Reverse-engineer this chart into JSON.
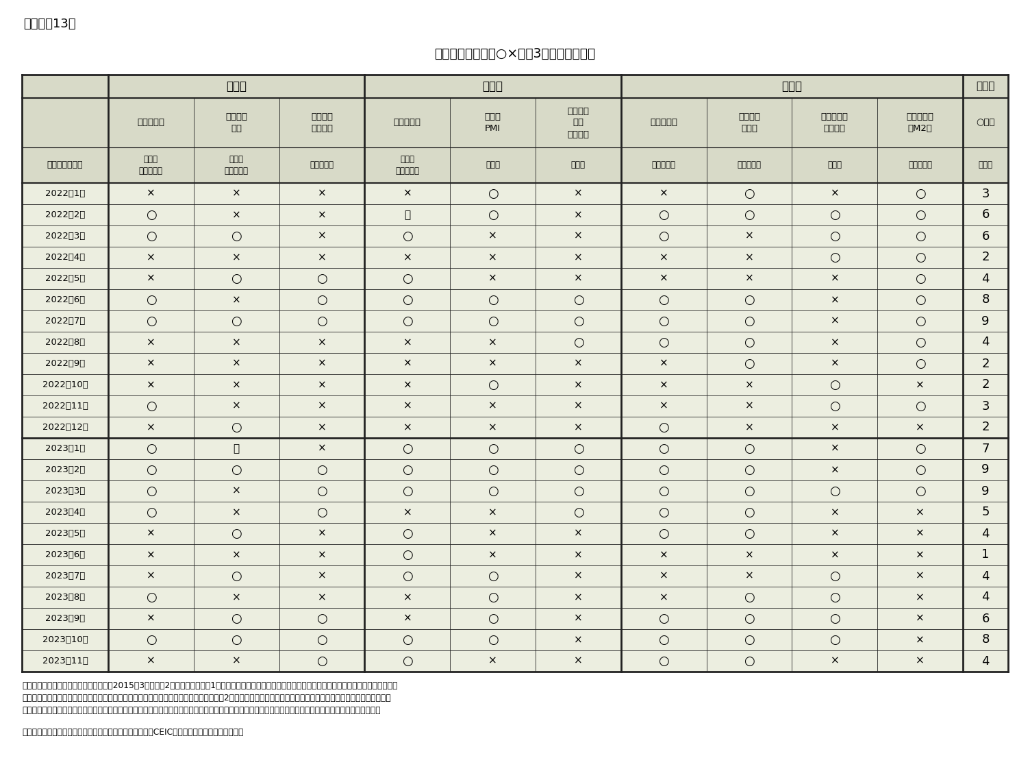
{
  "title": "景気評価総括表（○×表、3ヵ月前と対比）",
  "fig_label": "（図表－13）",
  "bg_color": "#eceee0",
  "header_bg": "#d8dac8",
  "border_color": "#222222",
  "rows": [
    {
      "label": "2022年1月",
      "vals": [
        "×",
        "×",
        "×",
        "×",
        "○",
        "×",
        "×",
        "○",
        "×",
        "○"
      ],
      "score": "3"
    },
    {
      "label": "2022年2月",
      "vals": [
        "○",
        "×",
        "×",
        "－",
        "○",
        "×",
        "○",
        "○",
        "○",
        "○"
      ],
      "score": "6"
    },
    {
      "label": "2022年3月",
      "vals": [
        "○",
        "○",
        "×",
        "○",
        "×",
        "×",
        "○",
        "×",
        "○",
        "○"
      ],
      "score": "6"
    },
    {
      "label": "2022年4月",
      "vals": [
        "×",
        "×",
        "×",
        "×",
        "×",
        "×",
        "×",
        "×",
        "○",
        "○"
      ],
      "score": "2"
    },
    {
      "label": "2022年5月",
      "vals": [
        "×",
        "○",
        "○",
        "○",
        "×",
        "×",
        "×",
        "×",
        "×",
        "○"
      ],
      "score": "4"
    },
    {
      "label": "2022年6月",
      "vals": [
        "○",
        "×",
        "○",
        "○",
        "○",
        "○",
        "○",
        "○",
        "×",
        "○"
      ],
      "score": "8"
    },
    {
      "label": "2022年7月",
      "vals": [
        "○",
        "○",
        "○",
        "○",
        "○",
        "○",
        "○",
        "○",
        "×",
        "○"
      ],
      "score": "9"
    },
    {
      "label": "2022年8月",
      "vals": [
        "×",
        "×",
        "×",
        "×",
        "×",
        "○",
        "○",
        "○",
        "×",
        "○"
      ],
      "score": "4"
    },
    {
      "label": "2022年9月",
      "vals": [
        "×",
        "×",
        "×",
        "×",
        "×",
        "×",
        "×",
        "○",
        "×",
        "○"
      ],
      "score": "2"
    },
    {
      "label": "2022年10月",
      "vals": [
        "×",
        "×",
        "×",
        "×",
        "○",
        "×",
        "×",
        "×",
        "○",
        "×"
      ],
      "score": "2"
    },
    {
      "label": "2022年11月",
      "vals": [
        "○",
        "×",
        "×",
        "×",
        "×",
        "×",
        "×",
        "×",
        "○",
        "○"
      ],
      "score": "3"
    },
    {
      "label": "2022年12月",
      "vals": [
        "×",
        "○",
        "×",
        "×",
        "×",
        "×",
        "○",
        "×",
        "×",
        "×"
      ],
      "score": "2"
    },
    {
      "label": "2023年1月",
      "vals": [
        "○",
        "－",
        "×",
        "○",
        "○",
        "○",
        "○",
        "○",
        "×",
        "○"
      ],
      "score": "7"
    },
    {
      "label": "2023年2月",
      "vals": [
        "○",
        "○",
        "○",
        "○",
        "○",
        "○",
        "○",
        "○",
        "×",
        "○"
      ],
      "score": "9"
    },
    {
      "label": "2023年3月",
      "vals": [
        "○",
        "×",
        "○",
        "○",
        "○",
        "○",
        "○",
        "○",
        "○",
        "○"
      ],
      "score": "9"
    },
    {
      "label": "2023年4月",
      "vals": [
        "○",
        "×",
        "○",
        "×",
        "×",
        "○",
        "○",
        "○",
        "×",
        "×"
      ],
      "score": "5"
    },
    {
      "label": "2023年5月",
      "vals": [
        "×",
        "○",
        "×",
        "○",
        "×",
        "×",
        "○",
        "○",
        "×",
        "×"
      ],
      "score": "4"
    },
    {
      "label": "2023年6月",
      "vals": [
        "×",
        "×",
        "×",
        "○",
        "×",
        "×",
        "×",
        "×",
        "×",
        "×"
      ],
      "score": "1"
    },
    {
      "label": "2023年7月",
      "vals": [
        "×",
        "○",
        "×",
        "○",
        "○",
        "×",
        "×",
        "×",
        "○",
        "×"
      ],
      "score": "4"
    },
    {
      "label": "2023年8月",
      "vals": [
        "○",
        "×",
        "×",
        "×",
        "○",
        "×",
        "×",
        "○",
        "○",
        "×"
      ],
      "score": "4"
    },
    {
      "label": "2023年9月",
      "vals": [
        "×",
        "○",
        "○",
        "×",
        "○",
        "×",
        "○",
        "○",
        "○",
        "×"
      ],
      "score": "6"
    },
    {
      "label": "2023年10月",
      "vals": [
        "○",
        "○",
        "○",
        "○",
        "○",
        "×",
        "○",
        "○",
        "○",
        "×"
      ],
      "score": "8"
    },
    {
      "label": "2023年11月",
      "vals": [
        "×",
        "×",
        "○",
        "○",
        "×",
        "×",
        "○",
        "○",
        "×",
        "×"
      ],
      "score": "4"
    }
  ],
  "note_lines": [
    "（注）景気評価点の計算方法については2015年3月に以下2点を改定した。第1点目は輸出金額で、改定前は「前月比（季節調整後）」を使用していたが、デー",
    "タ公表時期が不安定になってきたことから「前年同月比（季節調整後）」に変更した。第2点目は貨物輸送量で、改定前は「鉄道」を使用していたが、データ公表",
    "時期が不安定になってきたことやエネルギー改革の影響が大き過ぎると判断したことなどから「道路」に変更した。以上の変更は過去に遡って実施している。"
  ],
  "source": "（資料）中国国家統計局、中国海関総署、中国人民銀行、CEICより、ニッセイ基礎研究所作成"
}
